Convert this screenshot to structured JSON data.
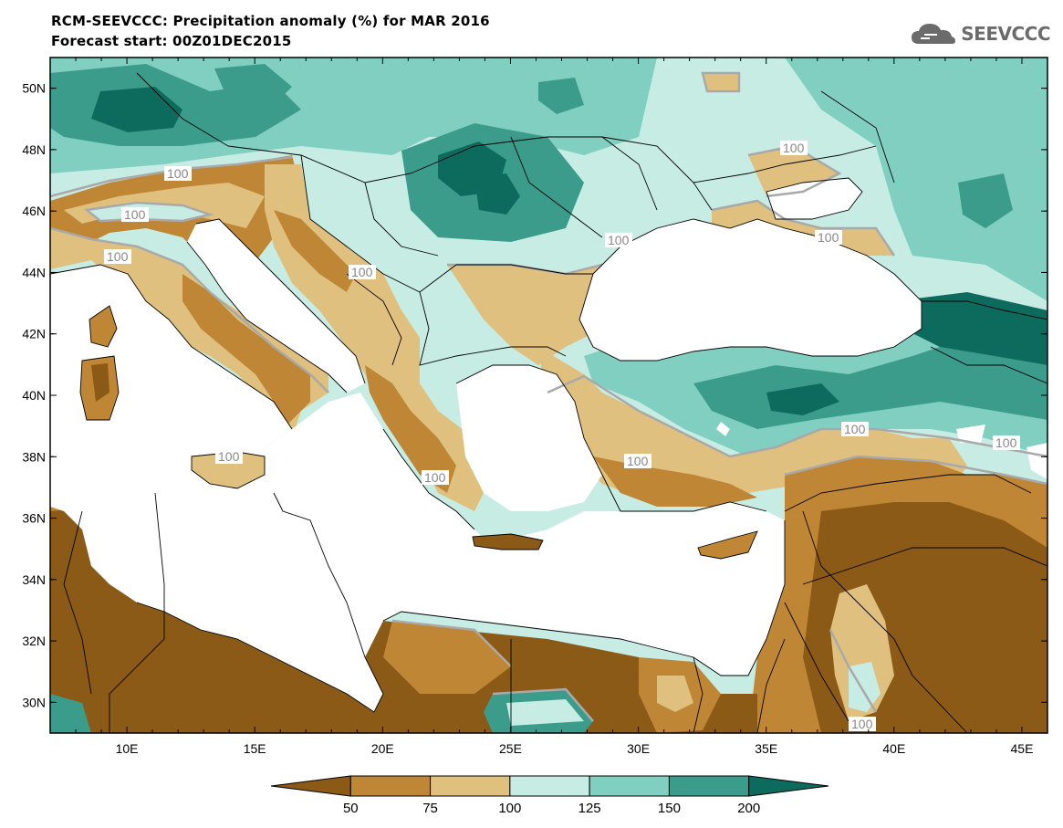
{
  "header": {
    "title": "RCM-SEEVCCC: Precipitation anomaly (%) for MAR 2016",
    "subtitle": "Forecast start: 00Z01DEC2015"
  },
  "logo": {
    "text": "SEEVCCC",
    "icon": "cloud-icon"
  },
  "map": {
    "lon_range": [
      7,
      46
    ],
    "lat_range": [
      29,
      51
    ],
    "lat_ticks": [
      "50N",
      "48N",
      "46N",
      "44N",
      "42N",
      "40N",
      "38N",
      "36N",
      "34N",
      "32N",
      "30N"
    ],
    "lon_ticks": [
      "10E",
      "15E",
      "20E",
      "25E",
      "30E",
      "35E",
      "40E",
      "45E"
    ],
    "contour_labels": [
      "100",
      "100",
      "100",
      "100",
      "100",
      "100",
      "100",
      "100",
      "100",
      "100",
      "100",
      "100",
      "100"
    ]
  },
  "colorbar": {
    "boundaries": [
      "50",
      "75",
      "100",
      "125",
      "150",
      "200"
    ],
    "colors": [
      "#8b5a17",
      "#be8635",
      "#dfc07e",
      "#c6ece4",
      "#80cfc0",
      "#3c9c8c",
      "#0d6b5e"
    ]
  },
  "colors": {
    "sea": "#ffffff",
    "contour_100": "#a9a9a9",
    "border": "#000000"
  }
}
